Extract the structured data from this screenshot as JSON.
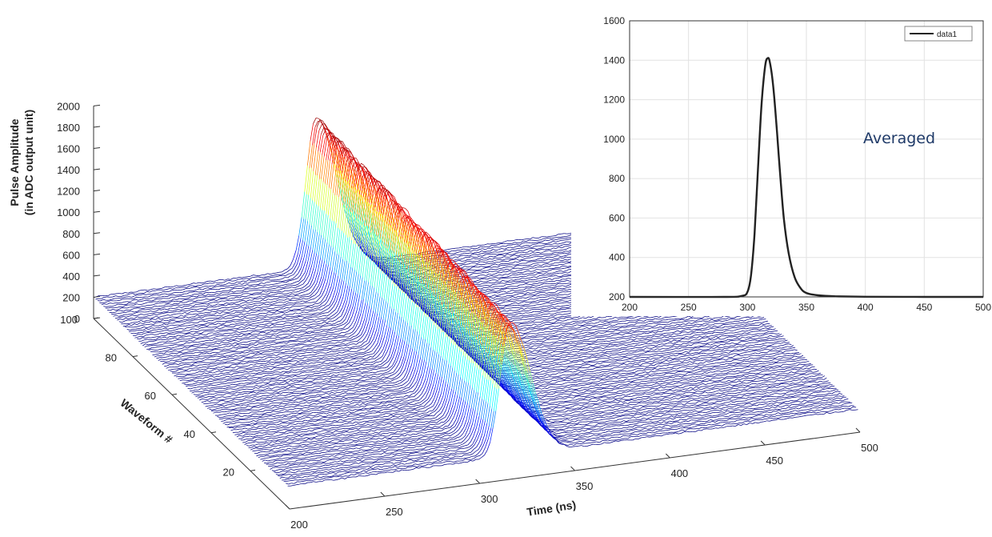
{
  "chart_data": [
    {
      "type": "waterfall",
      "zlabel": [
        "Pulse Amplitude",
        "(in ADC output unit)"
      ],
      "xlabel": "Time (ns)",
      "ylabel": "Waveform #",
      "x_ticks": [
        200,
        250,
        300,
        350,
        400,
        450,
        500
      ],
      "y_ticks": [
        20,
        40,
        60,
        80,
        100
      ],
      "z_ticks": [
        0,
        200,
        400,
        600,
        800,
        1000,
        1200,
        1400,
        1600,
        1800,
        2000
      ],
      "xlim": [
        200,
        500
      ],
      "ylim": [
        0,
        100
      ],
      "zlim": [
        0,
        2000
      ],
      "n_waveforms": 100,
      "baseline": 200,
      "pulse_center_ns": 317,
      "peak_amplitude_range": [
        1380,
        1600
      ],
      "colormap": "jet",
      "grid": false
    },
    {
      "type": "line",
      "title": "",
      "xlabel": "",
      "ylabel": "",
      "xlim": [
        200,
        500
      ],
      "ylim": [
        200,
        1600
      ],
      "x_ticks": [
        200,
        250,
        300,
        350,
        400,
        450,
        500
      ],
      "y_ticks": [
        200,
        400,
        600,
        800,
        1000,
        1200,
        1400,
        1600
      ],
      "grid": true,
      "legend": "top-right",
      "series": [
        {
          "name": "data1",
          "color": "#222222",
          "x": [
            200,
            280,
            295,
            300,
            303,
            306,
            309,
            312,
            315,
            317,
            319,
            322,
            325,
            328,
            331,
            335,
            340,
            345,
            350,
            360,
            375,
            400,
            450,
            500
          ],
          "y": [
            200,
            200,
            205,
            225,
            310,
            520,
            860,
            1180,
            1370,
            1410,
            1390,
            1260,
            1040,
            800,
            590,
            420,
            300,
            245,
            220,
            208,
            203,
            201,
            200,
            200
          ]
        }
      ],
      "annotation": "Averaged"
    }
  ]
}
